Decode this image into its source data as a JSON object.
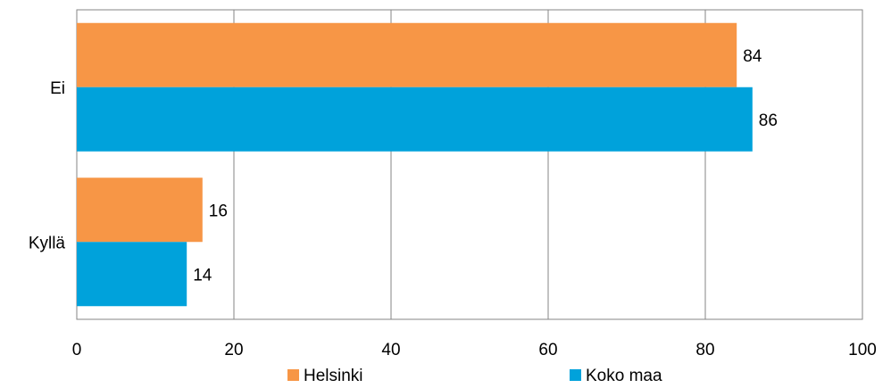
{
  "chart_data": {
    "type": "bar",
    "orientation": "horizontal",
    "categories": [
      "Ei",
      "Kyllä"
    ],
    "series": [
      {
        "name": "Helsinki",
        "values": [
          84,
          16
        ],
        "color": "#F79646"
      },
      {
        "name": "Koko maa",
        "values": [
          86,
          14
        ],
        "color": "#00A2DB"
      }
    ],
    "xlim": [
      0,
      100
    ],
    "xticks": [
      0,
      20,
      40,
      60,
      80,
      100
    ],
    "grid": "vertical",
    "legend": "bottom",
    "data_labels": true,
    "title": "",
    "xlabel": "",
    "ylabel": ""
  }
}
